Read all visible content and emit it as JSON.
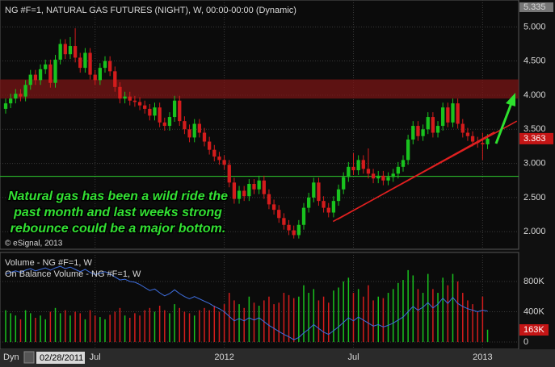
{
  "chart_data": {
    "type": "candlestick",
    "title": "NG #F=1, NATURAL GAS FUTURES (NIGHT), W, 00:00-00:00 (Dynamic)",
    "copyright": "© eSignal, 2013",
    "annotation_text": [
      "Natural gas has been a wild ride the",
      "past month and last weeks strong",
      "rebounce could be a major bottom."
    ],
    "start_date": "02/28/2011",
    "mode_button": "Dyn",
    "up_color": "#19c21e",
    "down_color": "#d41c1c",
    "open": [
      3.8,
      3.88,
      3.95,
      4.02,
      3.98,
      4.15,
      4.3,
      4.22,
      4.38,
      4.45,
      4.18,
      4.52,
      4.75,
      4.6,
      4.72,
      4.55,
      4.4,
      4.62,
      4.3,
      4.22,
      4.4,
      4.5,
      4.35,
      4.12,
      3.95,
      3.98,
      3.92,
      3.9,
      3.85,
      3.8,
      3.7,
      3.82,
      3.6,
      3.55,
      3.68,
      3.92,
      3.62,
      3.5,
      3.38,
      3.58,
      3.45,
      3.32,
      3.2,
      3.1,
      3.05,
      2.98,
      2.72,
      2.48,
      2.6,
      2.52,
      2.7,
      2.62,
      2.75,
      2.55,
      2.4,
      2.32,
      2.2,
      2.1,
      2.02,
      1.95,
      2.1,
      2.35,
      2.5,
      2.72,
      2.45,
      2.35,
      2.28,
      2.45,
      2.62,
      2.8,
      2.95,
      2.9,
      3.05,
      2.92,
      2.85,
      2.78,
      2.82,
      2.75,
      2.8,
      2.85,
      2.95,
      3.05,
      3.35,
      3.55,
      3.4,
      3.5,
      3.68,
      3.45,
      3.55,
      3.82,
      3.6,
      3.88,
      3.58,
      3.45,
      3.4,
      3.32,
      3.3,
      3.28
    ],
    "high": [
      3.95,
      4.02,
      4.09,
      4.09,
      4.22,
      4.37,
      4.37,
      4.45,
      4.52,
      4.52,
      4.59,
      4.82,
      4.82,
      4.85,
      4.98,
      4.62,
      4.69,
      4.69,
      4.37,
      4.47,
      4.57,
      4.57,
      4.42,
      4.19,
      4.05,
      4.05,
      3.99,
      3.97,
      3.92,
      3.87,
      3.89,
      3.89,
      3.67,
      3.75,
      3.99,
      3.99,
      3.69,
      3.57,
      3.65,
      3.65,
      3.52,
      3.39,
      3.27,
      3.17,
      3.12,
      3.05,
      2.79,
      2.67,
      2.67,
      2.77,
      2.77,
      2.82,
      2.82,
      2.62,
      2.47,
      2.39,
      2.27,
      2.17,
      2.09,
      2.17,
      2.42,
      2.57,
      2.79,
      2.79,
      2.52,
      2.42,
      2.52,
      2.69,
      2.87,
      3.02,
      3.15,
      3.12,
      3.12,
      3.22,
      2.92,
      2.89,
      2.89,
      2.87,
      2.92,
      3.02,
      3.12,
      3.42,
      3.62,
      3.62,
      3.57,
      3.75,
      3.75,
      3.62,
      3.89,
      3.89,
      3.95,
      3.95,
      3.65,
      3.52,
      3.47,
      3.39,
      3.45,
      3.43
    ],
    "low": [
      3.73,
      3.81,
      3.88,
      3.91,
      3.91,
      4.08,
      4.15,
      4.15,
      4.31,
      4.11,
      4.11,
      4.45,
      4.53,
      4.53,
      4.48,
      4.33,
      4.33,
      4.23,
      4.15,
      4.15,
      4.33,
      4.28,
      4.05,
      3.88,
      3.88,
      3.85,
      3.83,
      3.78,
      3.73,
      3.63,
      3.63,
      3.53,
      3.48,
      3.48,
      3.61,
      3.55,
      3.43,
      3.31,
      3.31,
      3.38,
      3.25,
      3.13,
      3.03,
      2.98,
      2.91,
      2.65,
      2.41,
      2.41,
      2.45,
      2.45,
      2.55,
      2.55,
      2.48,
      2.33,
      2.25,
      2.13,
      2.03,
      1.95,
      1.9,
      1.9,
      2.03,
      2.28,
      2.43,
      2.38,
      2.28,
      2.21,
      2.21,
      2.38,
      2.55,
      2.73,
      2.83,
      2.83,
      2.85,
      2.78,
      2.71,
      2.71,
      2.68,
      2.68,
      2.73,
      2.78,
      2.88,
      2.98,
      3.28,
      3.33,
      3.33,
      3.43,
      3.38,
      3.38,
      3.48,
      3.53,
      3.53,
      3.51,
      3.38,
      3.33,
      3.25,
      3.23,
      3.05,
      3.21
    ],
    "close": [
      3.88,
      3.95,
      4.02,
      3.98,
      4.15,
      4.3,
      4.22,
      4.38,
      4.45,
      4.18,
      4.52,
      4.75,
      4.6,
      4.72,
      4.55,
      4.4,
      4.62,
      4.3,
      4.22,
      4.4,
      4.5,
      4.35,
      4.12,
      3.95,
      3.98,
      3.92,
      3.9,
      3.85,
      3.8,
      3.7,
      3.82,
      3.6,
      3.55,
      3.68,
      3.92,
      3.62,
      3.5,
      3.38,
      3.58,
      3.45,
      3.32,
      3.2,
      3.1,
      3.05,
      2.98,
      2.72,
      2.48,
      2.6,
      2.52,
      2.7,
      2.62,
      2.75,
      2.55,
      2.4,
      2.32,
      2.2,
      2.1,
      2.02,
      1.95,
      2.1,
      2.35,
      2.5,
      2.72,
      2.45,
      2.35,
      2.28,
      2.45,
      2.62,
      2.8,
      2.95,
      2.9,
      3.05,
      2.92,
      2.85,
      2.78,
      2.82,
      2.75,
      2.8,
      2.85,
      2.95,
      3.05,
      3.35,
      3.55,
      3.4,
      3.5,
      3.68,
      3.45,
      3.55,
      3.82,
      3.6,
      3.88,
      3.58,
      3.45,
      3.4,
      3.32,
      3.3,
      3.28,
      3.363
    ],
    "ylim": [
      1.79,
      5.335
    ],
    "yticks": [
      5.335,
      {
        "value": 5,
        "label": "5.000"
      },
      {
        "value": 4.5,
        "label": "4.500"
      },
      {
        "value": 4,
        "label": "4.000"
      },
      {
        "value": 3.5,
        "label": "3.500"
      },
      {
        "value": 3,
        "label": "3.000"
      },
      {
        "value": 2.5,
        "label": "2.500"
      },
      {
        "value": 2,
        "label": "2.000"
      }
    ],
    "xlim": [
      -1.14,
      102.93
    ],
    "xticks": [
      {
        "value": 18,
        "label": "Jul"
      },
      {
        "value": 44,
        "label": "2012"
      },
      {
        "value": 70,
        "label": "Jul"
      },
      {
        "value": 96,
        "label": "2013"
      }
    ],
    "grid": true,
    "support_line": {
      "value": 2.81,
      "color": "#2ecc2e"
    },
    "resistance_zone": {
      "range": [
        3.95,
        4.23
      ],
      "color": "#7a1515"
    },
    "trendlines": {
      "color": "#e02020",
      "lines": [
        {
          "x": [
            65.9,
            102.9
          ],
          "y": [
            2.15,
            3.62
          ]
        },
        {
          "x": [
            66.8,
            98.4
          ],
          "y": [
            2.18,
            3.46
          ]
        }
      ]
    },
    "volume": {
      "name": "Volume - NG #F=1, W",
      "values": [
        420000,
        380000,
        350000,
        300000,
        420000,
        380000,
        320000,
        350000,
        300000,
        400000,
        450000,
        380000,
        420000,
        350000,
        400000,
        380000,
        300000,
        420000,
        350000,
        330000,
        300000,
        360000,
        400000,
        450000,
        350000,
        320000,
        380000,
        350000,
        420000,
        450000,
        400000,
        480000,
        420000,
        380000,
        500000,
        450000,
        400000,
        380000,
        350000,
        420000,
        450000,
        420000,
        480000,
        400000,
        500000,
        650000,
        550000,
        500000,
        450000,
        600000,
        520000,
        480000,
        550000,
        600000,
        500000,
        520000,
        650000,
        620000,
        580000,
        600000,
        750000,
        650000,
        700000,
        550000,
        600000,
        520000,
        680000,
        720000,
        800000,
        850000,
        650000,
        700000,
        600000,
        750000,
        550000,
        600000,
        580000,
        650000,
        700000,
        780000,
        820000,
        950000,
        880000,
        700000,
        650000,
        900000,
        700000,
        650000,
        850000,
        750000,
        900000,
        800000,
        650000,
        550000,
        500000,
        400000,
        600000,
        163000
      ],
      "last_value_label": "163K",
      "ylim": [
        -85000,
        1130000
      ],
      "yticks": [
        {
          "value": 800000,
          "label": "800K"
        },
        {
          "value": 400000,
          "label": "400K"
        },
        0
      ]
    },
    "obv": {
      "name": "On Balance Volume - NG #F=1, W",
      "color": "#3f6fe0",
      "values": [
        900000,
        920000,
        940000,
        920000,
        950000,
        970000,
        940000,
        960000,
        980000,
        950000,
        980000,
        1000000,
        970000,
        990000,
        960000,
        930000,
        960000,
        920000,
        890000,
        910000,
        930000,
        900000,
        860000,
        820000,
        830000,
        800000,
        790000,
        760000,
        720000,
        680000,
        700000,
        650000,
        610000,
        640000,
        690000,
        640000,
        600000,
        570000,
        600000,
        570000,
        540000,
        510000,
        470000,
        440000,
        400000,
        340000,
        280000,
        310000,
        280000,
        320000,
        290000,
        320000,
        270000,
        220000,
        180000,
        140000,
        100000,
        70000,
        30000,
        60000,
        120000,
        170000,
        230000,
        180000,
        130000,
        100000,
        150000,
        200000,
        260000,
        320000,
        280000,
        330000,
        290000,
        250000,
        210000,
        230000,
        200000,
        220000,
        250000,
        290000,
        330000,
        400000,
        470000,
        420000,
        460000,
        520000,
        450000,
        500000,
        580000,
        510000,
        590000,
        510000,
        470000,
        440000,
        420000,
        400000,
        420000,
        410000
      ]
    }
  }
}
